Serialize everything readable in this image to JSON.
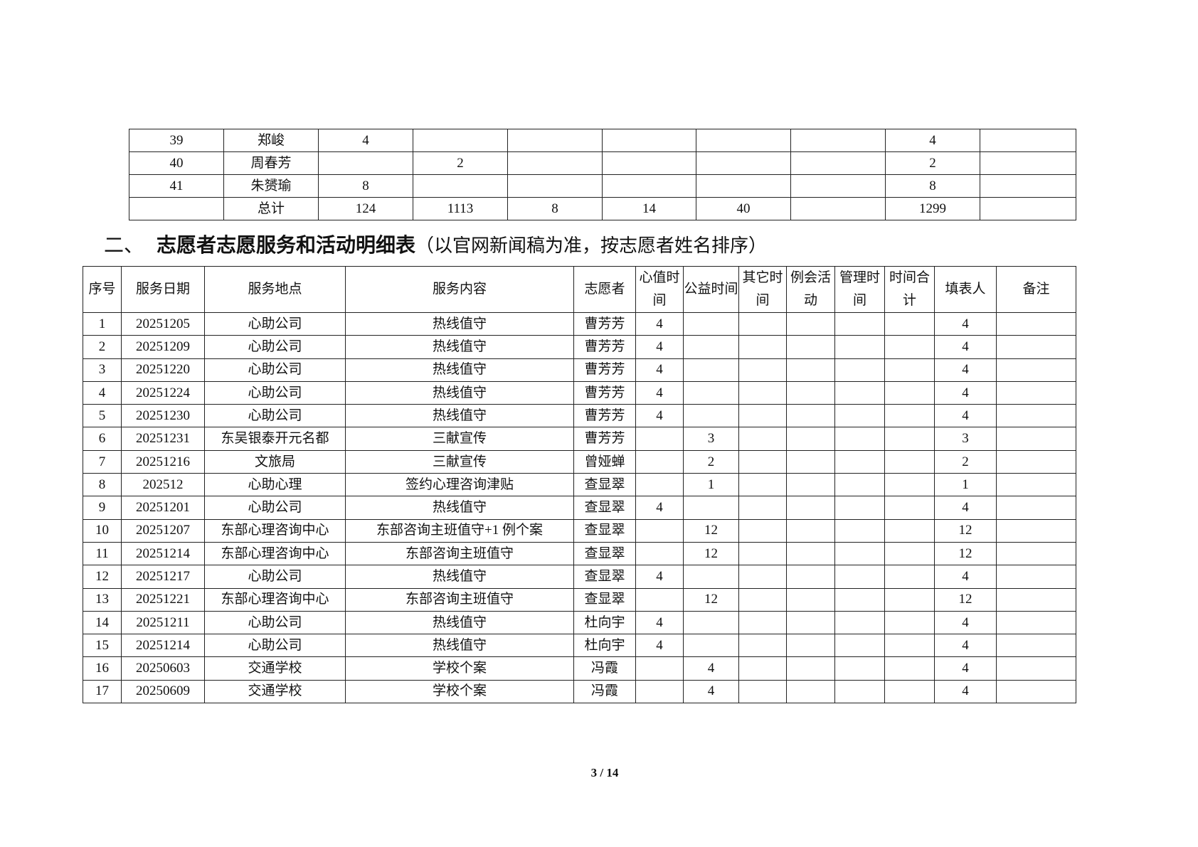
{
  "summary_table": {
    "rows": [
      [
        "39",
        "郑峻",
        "4",
        "",
        "",
        "",
        "",
        "",
        "4",
        ""
      ],
      [
        "40",
        "周春芳",
        "",
        "2",
        "",
        "",
        "",
        "",
        "2",
        ""
      ],
      [
        "41",
        "朱赟瑜",
        "8",
        "",
        "",
        "",
        "",
        "",
        "8",
        ""
      ],
      [
        "",
        "总计",
        "124",
        "1113",
        "8",
        "14",
        "40",
        "",
        "1299",
        ""
      ]
    ]
  },
  "section_heading": {
    "number": "二、",
    "title": "志愿者志愿服务和活动明细表",
    "note": "（以官网新闻稿为准，按志愿者姓名排序）"
  },
  "detail_table": {
    "headers": [
      "序号",
      "服务日期",
      "服务地点",
      "服务内容",
      "志愿者",
      "心值时间",
      "公益时间",
      "其它时间",
      "例会活动",
      "管理时间",
      "时间合计",
      "填表人",
      "备注"
    ],
    "rows": [
      [
        "1",
        "20251205",
        "心助公司",
        "热线值守",
        "曹芳芳",
        "4",
        "",
        "",
        "",
        "",
        "",
        "4",
        ""
      ],
      [
        "2",
        "20251209",
        "心助公司",
        "热线值守",
        "曹芳芳",
        "4",
        "",
        "",
        "",
        "",
        "",
        "4",
        ""
      ],
      [
        "3",
        "20251220",
        "心助公司",
        "热线值守",
        "曹芳芳",
        "4",
        "",
        "",
        "",
        "",
        "",
        "4",
        ""
      ],
      [
        "4",
        "20251224",
        "心助公司",
        "热线值守",
        "曹芳芳",
        "4",
        "",
        "",
        "",
        "",
        "",
        "4",
        ""
      ],
      [
        "5",
        "20251230",
        "心助公司",
        "热线值守",
        "曹芳芳",
        "4",
        "",
        "",
        "",
        "",
        "",
        "4",
        ""
      ],
      [
        "6",
        "20251231",
        "东吴银泰开元名都",
        "三献宣传",
        "曹芳芳",
        "",
        "3",
        "",
        "",
        "",
        "",
        "3",
        ""
      ],
      [
        "7",
        "20251216",
        "文旅局",
        "三献宣传",
        "曾娅蝉",
        "",
        "2",
        "",
        "",
        "",
        "",
        "2",
        ""
      ],
      [
        "8",
        "202512",
        "心助心理",
        "签约心理咨询津贴",
        "查显翠",
        "",
        "1",
        "",
        "",
        "",
        "",
        "1",
        ""
      ],
      [
        "9",
        "20251201",
        "心助公司",
        "热线值守",
        "查显翠",
        "4",
        "",
        "",
        "",
        "",
        "",
        "4",
        ""
      ],
      [
        "10",
        "20251207",
        "东部心理咨询中心",
        "东部咨询主班值守+1 例个案",
        "查显翠",
        "",
        "12",
        "",
        "",
        "",
        "",
        "12",
        ""
      ],
      [
        "11",
        "20251214",
        "东部心理咨询中心",
        "东部咨询主班值守",
        "查显翠",
        "",
        "12",
        "",
        "",
        "",
        "",
        "12",
        ""
      ],
      [
        "12",
        "20251217",
        "心助公司",
        "热线值守",
        "查显翠",
        "4",
        "",
        "",
        "",
        "",
        "",
        "4",
        ""
      ],
      [
        "13",
        "20251221",
        "东部心理咨询中心",
        "东部咨询主班值守",
        "查显翠",
        "",
        "12",
        "",
        "",
        "",
        "",
        "12",
        ""
      ],
      [
        "14",
        "20251211",
        "心助公司",
        "热线值守",
        "杜向宇",
        "4",
        "",
        "",
        "",
        "",
        "",
        "4",
        ""
      ],
      [
        "15",
        "20251214",
        "心助公司",
        "热线值守",
        "杜向宇",
        "4",
        "",
        "",
        "",
        "",
        "",
        "4",
        ""
      ],
      [
        "16",
        "20250603",
        "交通学校",
        "学校个案",
        "冯霞",
        "",
        "4",
        "",
        "",
        "",
        "",
        "4",
        ""
      ],
      [
        "17",
        "20250609",
        "交通学校",
        "学校个案",
        "冯霞",
        "",
        "4",
        "",
        "",
        "",
        "",
        "4",
        ""
      ]
    ]
  },
  "footer": {
    "page_number": "3 / 14"
  }
}
